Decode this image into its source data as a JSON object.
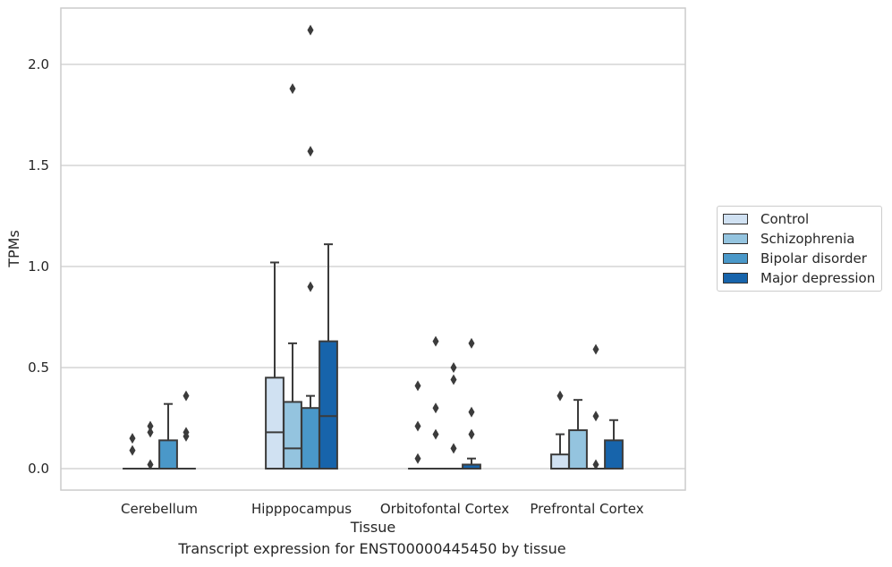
{
  "caption": "Transcript expression for ENST00000445450 by tissue",
  "chart_data": {
    "type": "box",
    "title": "",
    "xlabel": "Tissue",
    "ylabel": "TPMs",
    "ylim": [
      -0.1,
      2.28
    ],
    "yticks": [
      "0.0",
      "0.5",
      "1.0",
      "1.5",
      "2.0"
    ],
    "ytick_values": [
      0,
      0.5,
      1.0,
      1.5,
      2.0
    ],
    "grid": "horizontal",
    "legend_position": "right",
    "categories": [
      "Cerebellum",
      "Hipppocampus",
      "Orbitofontal Cortex",
      "Prefrontal Cortex"
    ],
    "series": [
      {
        "name": "Control",
        "color": "#d0e1f2",
        "boxes": [
          {
            "q1": 0,
            "median": 0,
            "q3": 0,
            "whisker_low": 0,
            "whisker_high": 0,
            "fliers": [
              0.09,
              0.15
            ]
          },
          {
            "q1": 0,
            "median": 0.18,
            "q3": 0.45,
            "whisker_low": 0,
            "whisker_high": 1.02,
            "fliers": []
          },
          {
            "q1": 0,
            "median": 0,
            "q3": 0,
            "whisker_low": 0,
            "whisker_high": 0,
            "fliers": [
              0.05,
              0.21,
              0.41
            ]
          },
          {
            "q1": 0,
            "median": 0,
            "q3": 0.07,
            "whisker_low": 0,
            "whisker_high": 0.17,
            "fliers": [
              0.36
            ]
          }
        ]
      },
      {
        "name": "Schizophrenia",
        "color": "#94c4df",
        "boxes": [
          {
            "q1": 0,
            "median": 0,
            "q3": 0,
            "whisker_low": 0,
            "whisker_high": 0,
            "fliers": [
              0.02,
              0.18,
              0.21
            ]
          },
          {
            "q1": 0,
            "median": 0.1,
            "q3": 0.33,
            "whisker_low": 0,
            "whisker_high": 0.62,
            "fliers": [
              1.88
            ]
          },
          {
            "q1": 0,
            "median": 0,
            "q3": 0,
            "whisker_low": 0,
            "whisker_high": 0,
            "fliers": [
              0.17,
              0.3,
              0.63
            ]
          },
          {
            "q1": 0,
            "median": 0,
            "q3": 0.19,
            "whisker_low": 0,
            "whisker_high": 0.34,
            "fliers": []
          }
        ]
      },
      {
        "name": "Bipolar disorder",
        "color": "#4a98c9",
        "boxes": [
          {
            "q1": 0,
            "median": 0,
            "q3": 0.14,
            "whisker_low": 0,
            "whisker_high": 0.32,
            "fliers": []
          },
          {
            "q1": 0,
            "median": 0,
            "q3": 0.3,
            "whisker_low": 0,
            "whisker_high": 0.36,
            "fliers": [
              0.9,
              1.57,
              2.17
            ]
          },
          {
            "q1": 0,
            "median": 0,
            "q3": 0,
            "whisker_low": 0,
            "whisker_high": 0,
            "fliers": [
              0.1,
              0.44,
              0.5
            ]
          },
          {
            "q1": 0,
            "median": 0,
            "q3": 0,
            "whisker_low": 0,
            "whisker_high": 0,
            "fliers": [
              0.02,
              0.26,
              0.59
            ]
          }
        ]
      },
      {
        "name": "Major depression",
        "color": "#1764ab",
        "boxes": [
          {
            "q1": 0,
            "median": 0,
            "q3": 0,
            "whisker_low": 0,
            "whisker_high": 0,
            "fliers": [
              0.16,
              0.18,
              0.36
            ]
          },
          {
            "q1": 0,
            "median": 0.26,
            "q3": 0.63,
            "whisker_low": 0,
            "whisker_high": 1.11,
            "fliers": []
          },
          {
            "q1": 0,
            "median": 0,
            "q3": 0.02,
            "whisker_low": 0,
            "whisker_high": 0.05,
            "fliers": [
              0.17,
              0.28,
              0.62
            ]
          },
          {
            "q1": 0,
            "median": 0,
            "q3": 0.14,
            "whisker_low": 0,
            "whisker_high": 0.24,
            "fliers": []
          }
        ]
      }
    ]
  }
}
